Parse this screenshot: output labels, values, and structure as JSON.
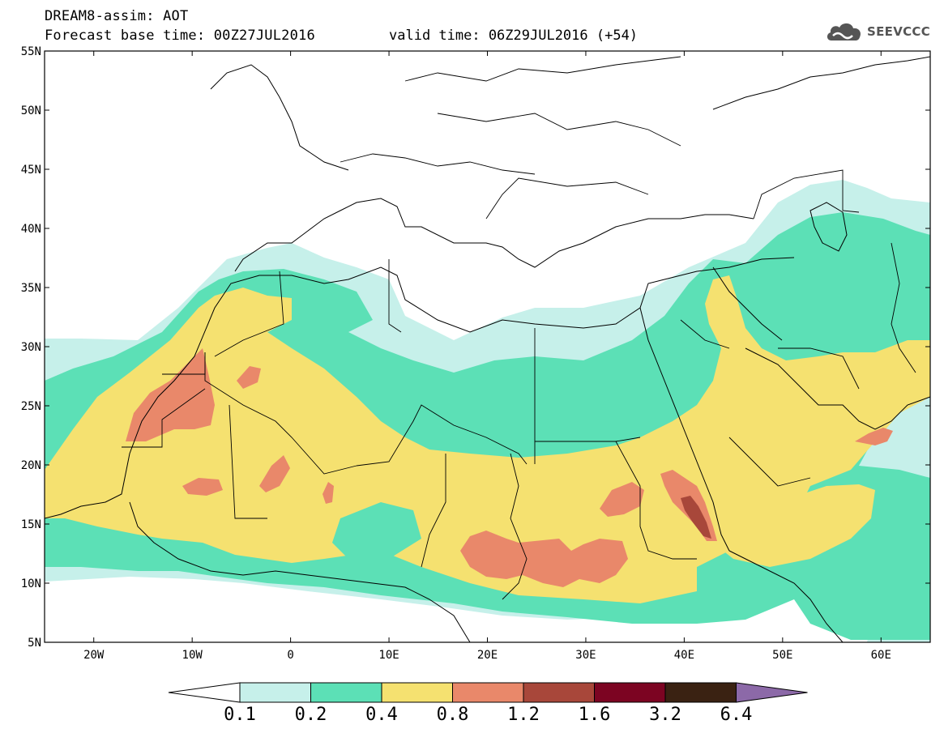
{
  "header": {
    "line1": "DREAM8-assim: AOT",
    "line2": "Forecast base time: 00Z27JUL2016",
    "valid": "valid time: 06Z29JUL2016 (+54)",
    "logo": "SEEVCCC"
  },
  "axes": {
    "lat_labels": [
      "55N",
      "50N",
      "45N",
      "40N",
      "35N",
      "30N",
      "25N",
      "20N",
      "15N",
      "10N",
      "5N"
    ],
    "lon_labels": [
      "20W",
      "10W",
      "0",
      "10E",
      "20E",
      "30E",
      "40E",
      "50E",
      "60E"
    ],
    "lat_range": [
      5,
      55
    ],
    "lon_range": [
      -25,
      65
    ]
  },
  "legend": {
    "levels": [
      "0.1",
      "0.2",
      "0.4",
      "0.8",
      "1.2",
      "1.6",
      "3.2",
      "6.4"
    ],
    "colors": [
      "#c6f0ea",
      "#5ce0b6",
      "#f5e170",
      "#e9886a",
      "#a8473a",
      "#7c0422",
      "#3a2212",
      "#8c69a8"
    ],
    "under_color": "#ffffff"
  },
  "field": {
    "name": "AOT",
    "palette": {
      "bg": "#ffffff",
      "c1": "#c6f0ea",
      "c2": "#5ce0b6",
      "c3": "#f5e170",
      "c4": "#e9886a",
      "c5": "#a8473a"
    }
  }
}
